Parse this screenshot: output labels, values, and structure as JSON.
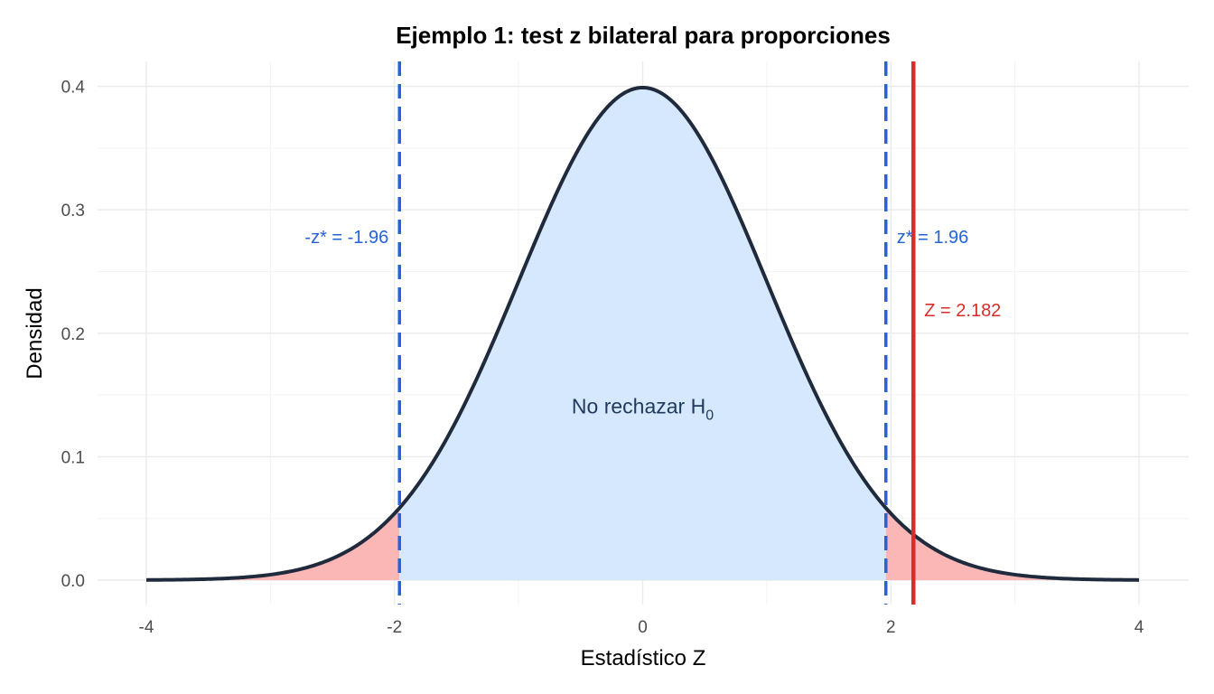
{
  "chart_data": {
    "type": "line",
    "title": "Ejemplo 1: test z bilateral para proporciones",
    "xlabel": "Estadístico Z",
    "ylabel": "Densidad",
    "xlim": [
      -4,
      4
    ],
    "ylim": [
      0,
      0.4
    ],
    "x_ticks": [
      -4,
      -2,
      0,
      2,
      4
    ],
    "y_ticks": [
      0.0,
      0.1,
      0.2,
      0.3,
      0.4
    ],
    "x_tick_labels": [
      "-4",
      "-2",
      "0",
      "2",
      "4"
    ],
    "y_tick_labels": [
      "0.0",
      "0.1",
      "0.2",
      "0.3",
      "0.4"
    ],
    "grid": true,
    "legend": "none",
    "series": [
      {
        "distribution": "standard-normal",
        "x_range": [
          -4,
          4
        ],
        "color": "#1f2a3c"
      }
    ],
    "critical_values": {
      "lower": -1.96,
      "upper": 1.96
    },
    "observed_z": 2.182,
    "annotations": {
      "lower_critical_label": "-z* = -1.96",
      "upper_critical_label": "z* = 1.96",
      "observed_label": "Z = 2.182",
      "center_label_main": "No rechazar H",
      "center_label_sub": "0"
    },
    "colors": {
      "curve": "#1f2a3c",
      "accept_region": "#d6e8fd",
      "reject_region": "#fbb6b6",
      "critical_line": "#2563d9",
      "critical_text": "#2563d9",
      "observed_line": "#d62e2b",
      "observed_text": "#d62e2b",
      "center_text": "#1f3a5c"
    }
  }
}
